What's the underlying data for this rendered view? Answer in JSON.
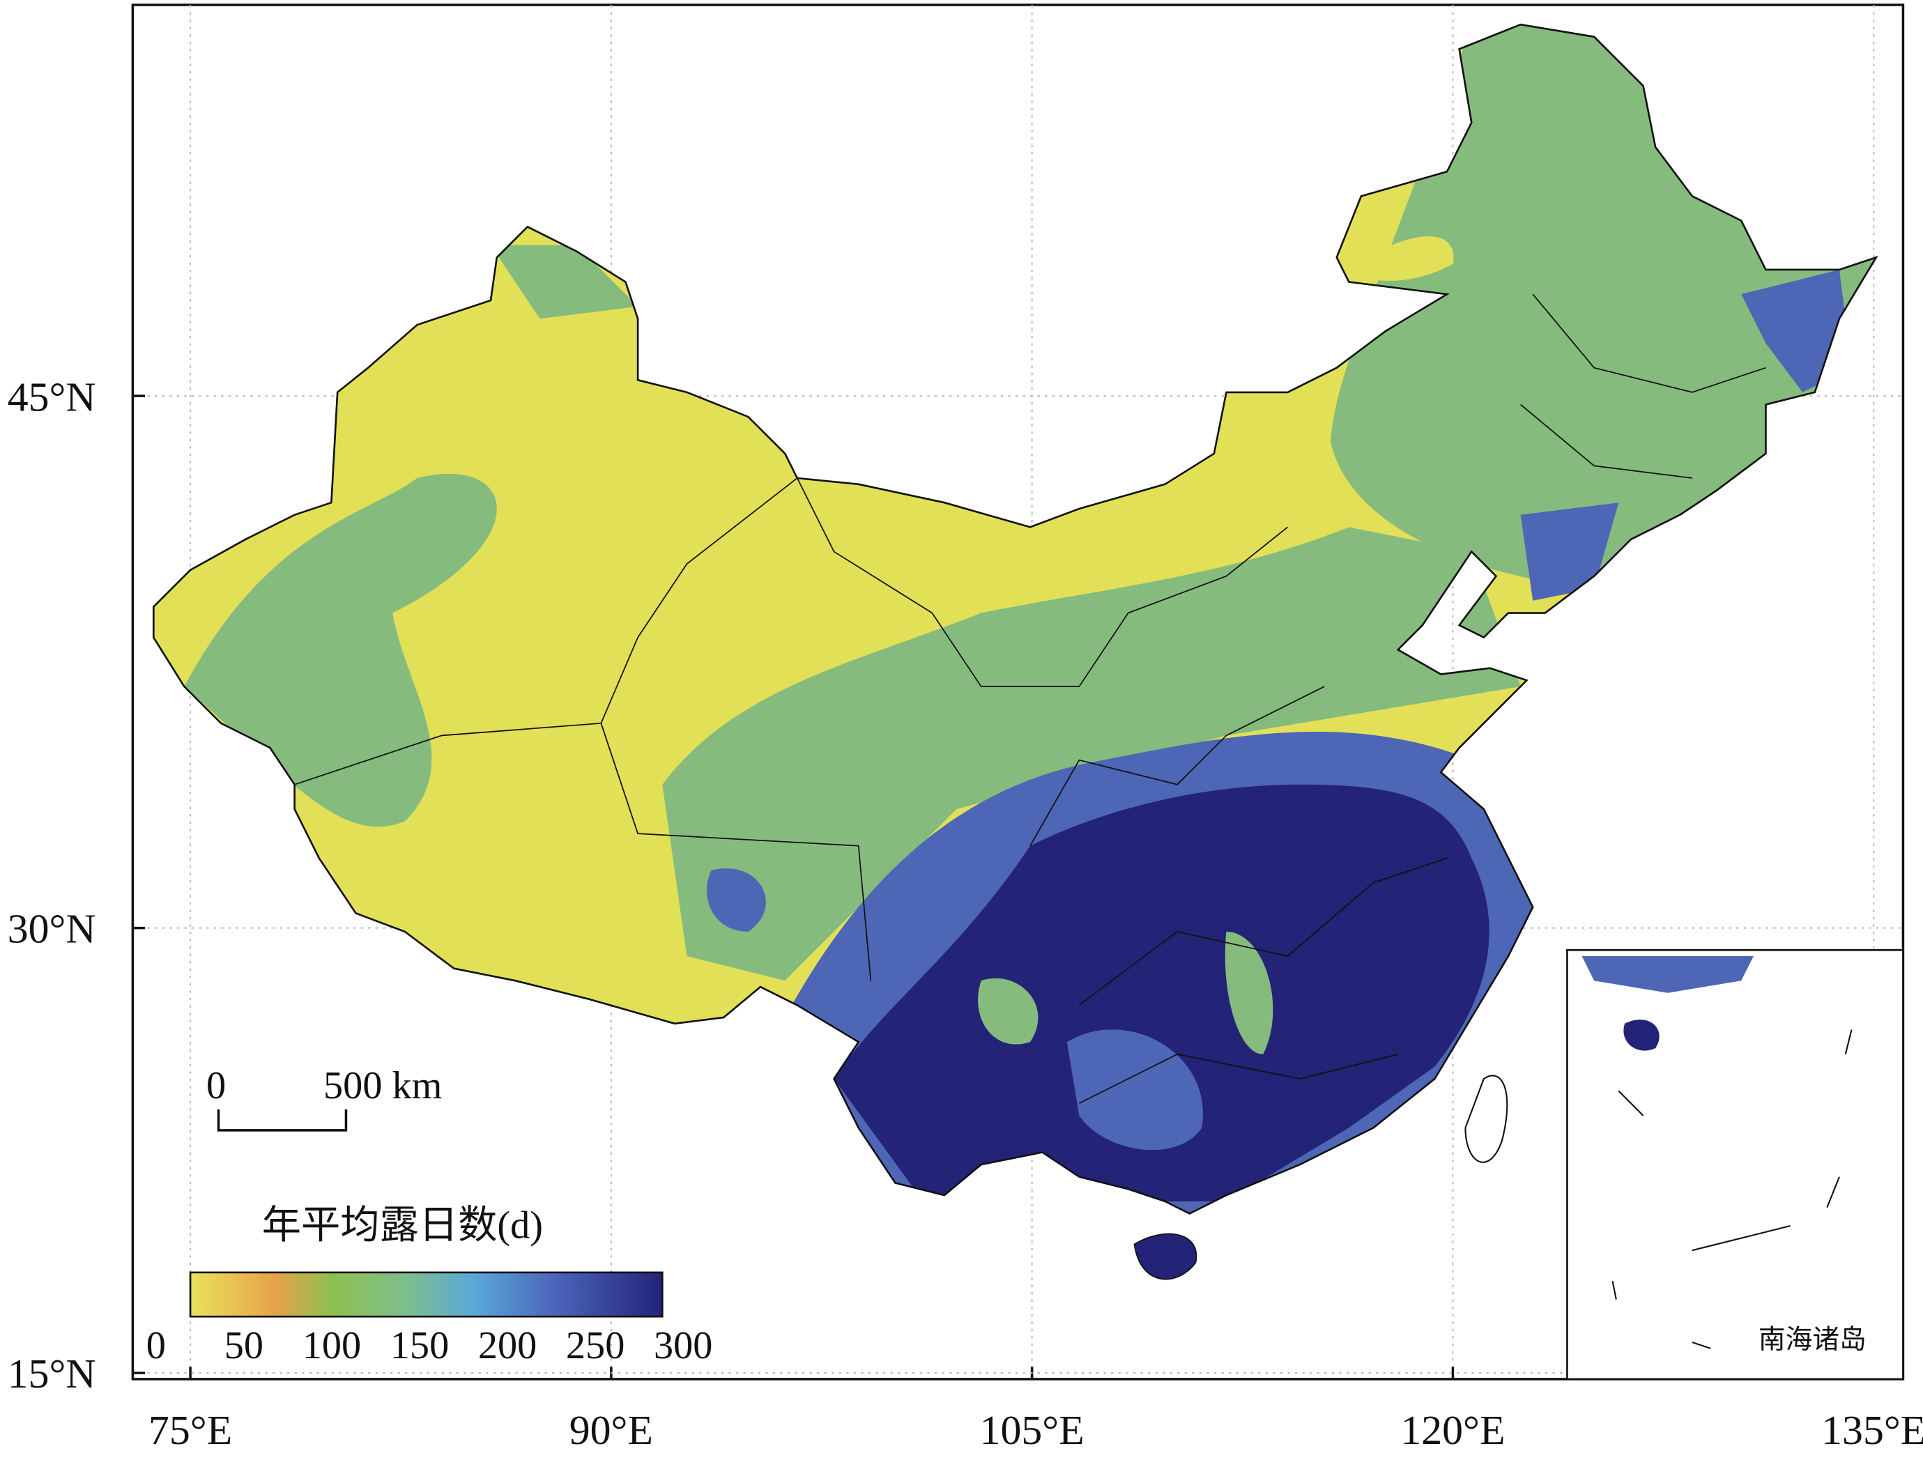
{
  "map": {
    "lon_ticks": [
      {
        "value": 75,
        "label": "75°E"
      },
      {
        "value": 90,
        "label": "90°E"
      },
      {
        "value": 105,
        "label": "105°E"
      },
      {
        "value": 120,
        "label": "120°E"
      },
      {
        "value": 135,
        "label": "135°E"
      }
    ],
    "lat_ticks": [
      {
        "value": 15,
        "label": "15°N"
      },
      {
        "value": 30,
        "label": "30°N"
      },
      {
        "value": 45,
        "label": "45°N"
      }
    ],
    "scale_bar": {
      "start": "0",
      "end": "500 km"
    },
    "legend": {
      "title": "年平均露日数(d)",
      "ticks": [
        0,
        50,
        100,
        150,
        200,
        250,
        300
      ]
    },
    "inset_label": "南海诸岛"
  }
}
